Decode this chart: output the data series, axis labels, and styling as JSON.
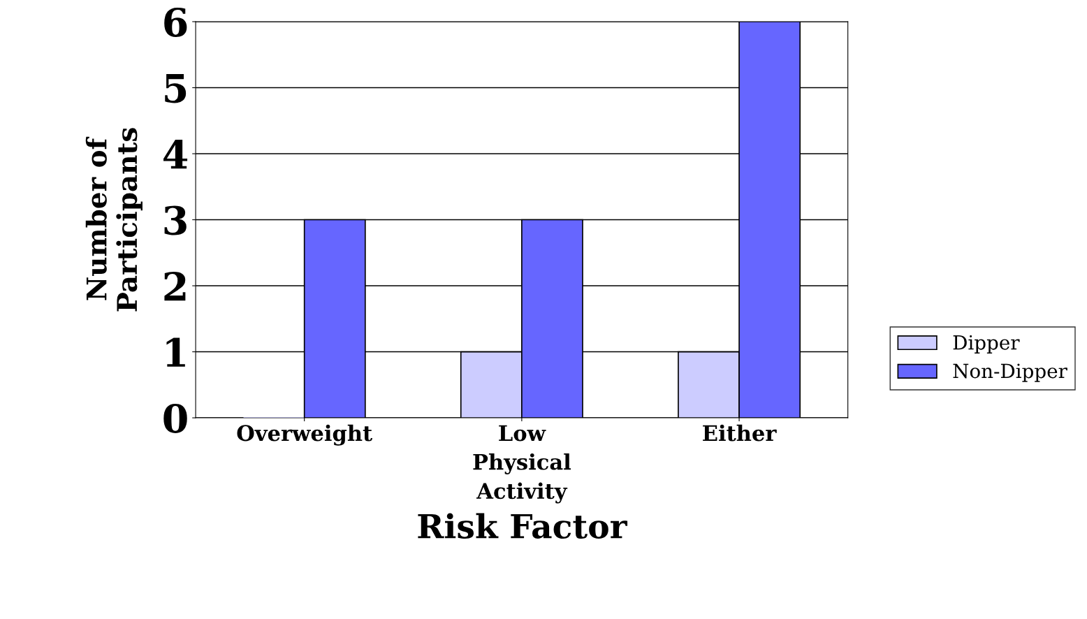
{
  "chart_data": {
    "type": "bar",
    "xlabel": "Risk Factor",
    "ylabel": "Number of\nParticipants",
    "categories": [
      "Overweight",
      "Low\nPhysical\nActivity",
      "Either"
    ],
    "series": [
      {
        "name": "Dipper",
        "color": "#ccccff",
        "values": [
          0,
          1,
          1
        ]
      },
      {
        "name": "Non-Dipper",
        "color": "#6666ff",
        "values": [
          3,
          3,
          6
        ]
      }
    ],
    "ylim": [
      0,
      6
    ],
    "yticks": [
      0,
      1,
      2,
      3,
      4,
      5,
      6
    ],
    "grid": "y",
    "legend": "right"
  }
}
